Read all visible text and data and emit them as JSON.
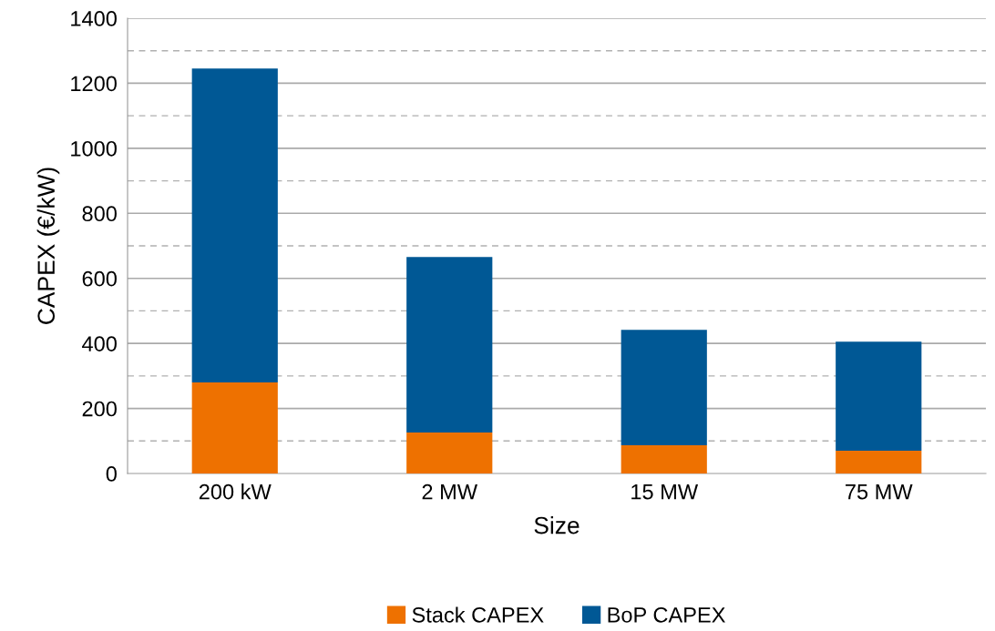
{
  "chart_data": {
    "type": "bar",
    "stacked": true,
    "xlabel": "Size",
    "ylabel": "CAPEX (€/kW)",
    "categories": [
      "200 kW",
      "2 MW",
      "15 MW",
      "75 MW"
    ],
    "series": [
      {
        "name": "Stack CAPEX",
        "color": "#ee7100",
        "values": [
          280,
          126,
          87,
          70
        ]
      },
      {
        "name": "BoP CAPEX",
        "color": "#005895",
        "values": [
          965,
          540,
          355,
          335
        ]
      }
    ],
    "ylim": [
      0,
      1400
    ],
    "yticks": [
      0,
      {
        "value": 100,
        "label": null
      },
      200,
      {
        "value": 300,
        "label": null
      },
      400,
      {
        "value": 500,
        "label": null
      },
      600,
      {
        "value": 700,
        "label": null
      },
      800,
      {
        "value": 900,
        "label": null
      },
      1000,
      {
        "value": 1100,
        "label": null
      },
      1200,
      {
        "value": 1300,
        "label": null
      },
      1400
    ],
    "grid": "y",
    "legend": "bottom"
  }
}
